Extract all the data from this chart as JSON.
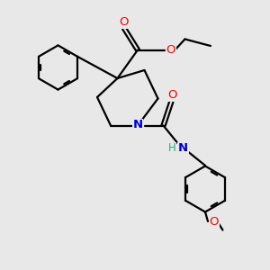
{
  "bg_color": "#e8e8e8",
  "bond_color": "#000000",
  "bond_width": 1.6,
  "atom_colors": {
    "O": "#ff0000",
    "N": "#0000cc",
    "C": "#000000",
    "H": "#2aaa8a"
  },
  "figsize": [
    3.0,
    3.0
  ],
  "dpi": 100
}
